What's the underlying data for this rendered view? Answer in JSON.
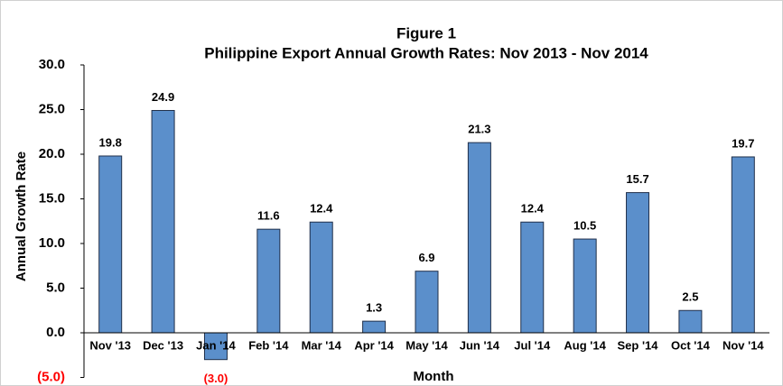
{
  "chart_data": {
    "type": "bar",
    "title": [
      "Figure 1",
      "Philippine Export Annual Growth Rates: Nov 2013 - Nov 2014"
    ],
    "x_label": "Month",
    "y_label": "Annual Growth Rate",
    "categories": [
      "Nov '13",
      "Dec '13",
      "Jan '14",
      "Feb '14",
      "Mar '14",
      "Apr '14",
      "May '14",
      "Jun '14",
      "Jul '14",
      "Aug '14",
      "Sep '14",
      "Oct '14",
      "Nov '14"
    ],
    "values": [
      19.8,
      24.9,
      -3.0,
      11.6,
      12.4,
      1.3,
      6.9,
      21.3,
      12.4,
      10.5,
      15.7,
      2.5,
      19.7
    ],
    "value_labels": [
      "19.8",
      "24.9",
      "(3.0)",
      "11.6",
      "12.4",
      "1.3",
      "6.9",
      "21.3",
      "12.4",
      "10.5",
      "15.7",
      "2.5",
      "19.7"
    ],
    "color": "#5b8fcb",
    "negative_label_color": "#ff0000",
    "ylim": [
      -5,
      30
    ],
    "yticks": [
      {
        "value": 30,
        "label": "30.0"
      },
      {
        "value": 25,
        "label": "25.0"
      },
      {
        "value": 20,
        "label": "20.0"
      },
      {
        "value": 15,
        "label": "15.0"
      },
      {
        "value": 10,
        "label": "10.0"
      },
      {
        "value": 5,
        "label": "5.0"
      },
      {
        "value": 0,
        "label": "0.0"
      },
      {
        "value": -5,
        "label": "(5.0)"
      }
    ],
    "grid": false
  }
}
